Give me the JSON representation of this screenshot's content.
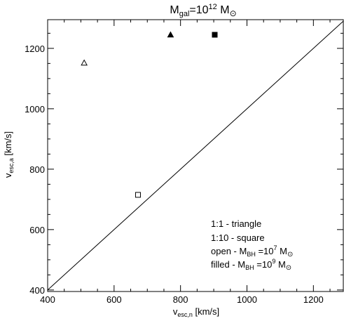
{
  "chart_data": {
    "type": "scatter",
    "title": {
      "base": "M",
      "sub": "gal",
      "mid": "=10",
      "sup": "12",
      "sp": " M",
      "sun": "⊙"
    },
    "xlabel": {
      "base": "v",
      "sub": "esc,n",
      "unit": " [km/s]"
    },
    "ylabel": {
      "base": "v",
      "sub": "esc,a",
      "unit": " [km/s]"
    },
    "xlim": [
      400,
      1290
    ],
    "ylim": [
      395,
      1295
    ],
    "xticks": [
      400,
      600,
      800,
      1000,
      1200
    ],
    "yticks": [
      400,
      600,
      800,
      1000,
      1200
    ],
    "grid": false,
    "reference_line": {
      "from": [
        400,
        400
      ],
      "to": [
        1290,
        1290
      ]
    },
    "series": [
      {
        "marker": "triangle",
        "fill": "open",
        "x": 510,
        "y": 1152
      },
      {
        "marker": "triangle",
        "fill": "filled",
        "x": 770,
        "y": 1245
      },
      {
        "marker": "square",
        "fill": "open",
        "x": 672,
        "y": 715
      },
      {
        "marker": "square",
        "fill": "filled",
        "x": 903,
        "y": 1245
      }
    ],
    "legend": {
      "position": "bottom-right",
      "lines": [
        {
          "text": "1:1 - triangle"
        },
        {
          "text": "1:10 - square"
        },
        {
          "pre": "open - M",
          "sub": "BH",
          "mid": " =10",
          "sup": "7",
          "sp": " M",
          "sun": "⊙"
        },
        {
          "pre": "filled - M",
          "sub": "BH",
          "mid": " =10",
          "sup": "9",
          "sp": " M",
          "sun": "⊙"
        }
      ]
    }
  }
}
